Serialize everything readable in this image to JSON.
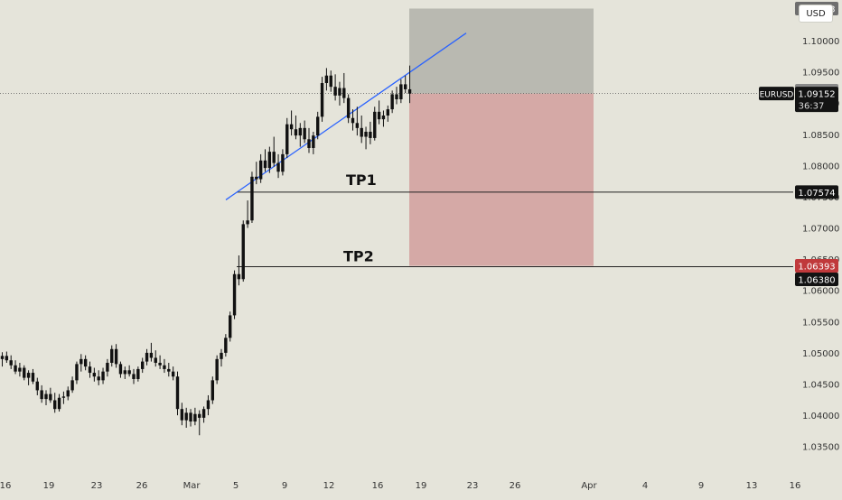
{
  "currency_button": "USD",
  "symbol_label": "EURUSD",
  "countdown": "36:37",
  "price_tags": {
    "target_top": "1.10513",
    "last_grey": "1.09198",
    "last_close": "1.09152",
    "tp1": "1.07574",
    "stop_red": "1.06393",
    "tp2": "1.06380"
  },
  "annotations": {
    "tp1": "TP1",
    "tp2": "TP2"
  },
  "colors": {
    "background": "#e5e4da",
    "candle": "#111111",
    "trendline": "#2962ff",
    "profit_zone": "#b9b9b1",
    "loss_zone": "#d5a9a6",
    "tag_dark": "#131313",
    "tag_grey": "#7a7a7a",
    "tag_red": "#c0393b"
  },
  "chart_data": {
    "type": "candlestick",
    "y_axis": {
      "range": [
        1.0325,
        1.1065
      ],
      "ticks": [
        "1.03500",
        "1.04000",
        "1.04500",
        "1.05000",
        "1.05500",
        "1.06000",
        "1.06500",
        "1.07000",
        "1.07500",
        "1.08000",
        "1.08500",
        "1.09000",
        "1.09500",
        "1.10000"
      ],
      "tick_values": [
        1.035,
        1.04,
        1.045,
        1.05,
        1.055,
        1.06,
        1.065,
        1.07,
        1.075,
        1.08,
        1.085,
        1.09,
        1.095,
        1.1
      ]
    },
    "x_axis": {
      "ticks": [
        "16",
        "19",
        "23",
        "26",
        "Mar",
        "5",
        "9",
        "12",
        "16",
        "19",
        "23",
        "26",
        "Apr",
        "4",
        "9",
        "13",
        "16"
      ]
    },
    "price_line": 1.09152,
    "tp1_level": 1.07574,
    "tp2_level": 1.0638,
    "position": {
      "entry": 1.09152,
      "target": 1.10513,
      "stop": 1.06393
    },
    "trendline": [
      1.0745,
      1.1012
    ],
    "candles": [
      [
        1.049,
        1.0501,
        1.0478,
        1.0495
      ],
      [
        1.0495,
        1.0502,
        1.0484,
        1.0488
      ],
      [
        1.0488,
        1.0496,
        1.0474,
        1.048
      ],
      [
        1.048,
        1.0488,
        1.0466,
        1.047
      ],
      [
        1.047,
        1.0484,
        1.0462,
        1.0476
      ],
      [
        1.0476,
        1.048,
        1.0456,
        1.046
      ],
      [
        1.046,
        1.0472,
        1.0448,
        1.0468
      ],
      [
        1.0468,
        1.0474,
        1.045,
        1.0454
      ],
      [
        1.0454,
        1.046,
        1.0432,
        1.044
      ],
      [
        1.044,
        1.0448,
        1.042,
        1.0426
      ],
      [
        1.0426,
        1.044,
        1.0416,
        1.0434
      ],
      [
        1.0434,
        1.0444,
        1.042,
        1.0424
      ],
      [
        1.0424,
        1.0436,
        1.0404,
        1.041
      ],
      [
        1.041,
        1.0434,
        1.0406,
        1.0428
      ],
      [
        1.0428,
        1.0438,
        1.0418,
        1.043
      ],
      [
        1.043,
        1.0446,
        1.0424,
        1.044
      ],
      [
        1.044,
        1.0462,
        1.0436,
        1.0456
      ],
      [
        1.0456,
        1.0486,
        1.045,
        1.0482
      ],
      [
        1.0482,
        1.0498,
        1.047,
        1.049
      ],
      [
        1.049,
        1.0496,
        1.0472,
        1.0478
      ],
      [
        1.0478,
        1.0486,
        1.046,
        1.0468
      ],
      [
        1.0468,
        1.0476,
        1.0454,
        1.0462
      ],
      [
        1.0462,
        1.0472,
        1.0448,
        1.0456
      ],
      [
        1.0456,
        1.0476,
        1.045,
        1.047
      ],
      [
        1.047,
        1.049,
        1.0462,
        1.0484
      ],
      [
        1.0484,
        1.0512,
        1.0478,
        1.0506
      ],
      [
        1.0506,
        1.0514,
        1.0476,
        1.0482
      ],
      [
        1.0482,
        1.0486,
        1.046,
        1.0466
      ],
      [
        1.0466,
        1.0478,
        1.0458,
        1.0472
      ],
      [
        1.0472,
        1.048,
        1.0462,
        1.0466
      ],
      [
        1.0466,
        1.0474,
        1.045,
        1.0458
      ],
      [
        1.0458,
        1.0478,
        1.0454,
        1.0474
      ],
      [
        1.0474,
        1.0492,
        1.0468,
        1.0486
      ],
      [
        1.0486,
        1.0506,
        1.048,
        1.05
      ],
      [
        1.05,
        1.0516,
        1.0486,
        1.0492
      ],
      [
        1.0492,
        1.0504,
        1.0478,
        1.0484
      ],
      [
        1.0484,
        1.0496,
        1.0474,
        1.048
      ],
      [
        1.048,
        1.049,
        1.0468,
        1.0474
      ],
      [
        1.0474,
        1.0484,
        1.0462,
        1.047
      ],
      [
        1.047,
        1.0478,
        1.0456,
        1.0462
      ],
      [
        1.0462,
        1.047,
        1.04,
        1.041
      ],
      [
        1.041,
        1.042,
        1.0384,
        1.0392
      ],
      [
        1.0392,
        1.0412,
        1.038,
        1.0404
      ],
      [
        1.0404,
        1.041,
        1.0382,
        1.039
      ],
      [
        1.039,
        1.0412,
        1.0384,
        1.0402
      ],
      [
        1.0402,
        1.0408,
        1.0368,
        1.0396
      ],
      [
        1.0396,
        1.0414,
        1.0388,
        1.041
      ],
      [
        1.041,
        1.0432,
        1.04,
        1.0424
      ],
      [
        1.0424,
        1.0462,
        1.0418,
        1.0456
      ],
      [
        1.0456,
        1.0496,
        1.045,
        1.049
      ],
      [
        1.049,
        1.0506,
        1.0478,
        1.05
      ],
      [
        1.05,
        1.053,
        1.0494,
        1.0524
      ],
      [
        1.0524,
        1.0566,
        1.0518,
        1.056
      ],
      [
        1.056,
        1.0632,
        1.0554,
        1.0626
      ],
      [
        1.0626,
        1.0656,
        1.0608,
        1.0618
      ],
      [
        1.0618,
        1.0712,
        1.0614,
        1.0706
      ],
      [
        1.0706,
        1.0744,
        1.07,
        1.0712
      ],
      [
        1.0712,
        1.079,
        1.0708,
        1.0782
      ],
      [
        1.0782,
        1.0806,
        1.077,
        1.0778
      ],
      [
        1.0778,
        1.0818,
        1.0772,
        1.0808
      ],
      [
        1.0808,
        1.0826,
        1.079,
        1.0796
      ],
      [
        1.0796,
        1.083,
        1.0788,
        1.0822
      ],
      [
        1.0822,
        1.0846,
        1.0798,
        1.0804
      ],
      [
        1.0804,
        1.0818,
        1.078,
        1.079
      ],
      [
        1.079,
        1.0826,
        1.0784,
        1.0818
      ],
      [
        1.0818,
        1.0876,
        1.0812,
        1.0866
      ],
      [
        1.0866,
        1.0888,
        1.0848,
        1.0858
      ],
      [
        1.0858,
        1.088,
        1.0842,
        1.0848
      ],
      [
        1.0848,
        1.0868,
        1.083,
        1.086
      ],
      [
        1.086,
        1.0872,
        1.0836,
        1.0842
      ],
      [
        1.0842,
        1.086,
        1.082,
        1.0828
      ],
      [
        1.0828,
        1.0854,
        1.0818,
        1.0848
      ],
      [
        1.0848,
        1.0886,
        1.0842,
        1.0878
      ],
      [
        1.0878,
        1.0942,
        1.087,
        1.0932
      ],
      [
        1.0932,
        1.0956,
        1.092,
        1.0944
      ],
      [
        1.0944,
        1.0952,
        1.0918,
        1.0926
      ],
      [
        1.0926,
        1.0946,
        1.0904,
        1.0912
      ],
      [
        1.0912,
        1.0934,
        1.0896,
        1.0924
      ],
      [
        1.0924,
        1.0948,
        1.09,
        1.0908
      ],
      [
        1.0908,
        1.0914,
        1.0868,
        1.0876
      ],
      [
        1.0876,
        1.089,
        1.0856,
        1.0868
      ],
      [
        1.0868,
        1.0894,
        1.0848,
        1.086
      ],
      [
        1.086,
        1.088,
        1.0836,
        1.0846
      ],
      [
        1.0846,
        1.0862,
        1.0826,
        1.0854
      ],
      [
        1.0854,
        1.087,
        1.0834,
        1.0844
      ],
      [
        1.0844,
        1.0894,
        1.084,
        1.0886
      ],
      [
        1.0886,
        1.0904,
        1.0866,
        1.0874
      ],
      [
        1.0874,
        1.0888,
        1.0862,
        1.088
      ],
      [
        1.088,
        1.0896,
        1.087,
        1.089
      ],
      [
        1.089,
        1.092,
        1.0884,
        1.0914
      ],
      [
        1.0914,
        1.0926,
        1.0898,
        1.0906
      ],
      [
        1.0906,
        1.0938,
        1.09,
        1.093
      ],
      [
        1.093,
        1.0944,
        1.0916,
        1.0922
      ],
      [
        1.0922,
        1.096,
        1.09,
        1.0915
      ]
    ]
  }
}
